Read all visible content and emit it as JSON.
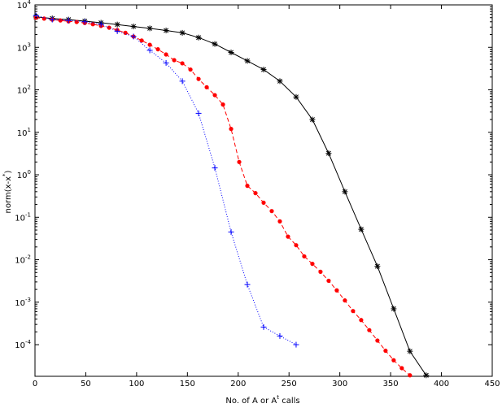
{
  "chart_data": {
    "type": "line",
    "title": "",
    "xlabel": "No. of A or A",
    "xlabel_sup": "t",
    "xlabel_suffix": " calls",
    "ylabel": "norm(x-x",
    "ylabel_sup": "*",
    "ylabel_suffix": ")",
    "xlim": [
      0,
      450
    ],
    "ylim": [
      1.8e-05,
      10000
    ],
    "yscale": "log",
    "grid": false,
    "xticks": [
      0,
      50,
      100,
      150,
      200,
      250,
      300,
      350,
      400,
      450
    ],
    "xtick_labels": [
      "0",
      "50",
      "100",
      "150",
      "200",
      "250",
      "300",
      "350",
      "400",
      "450"
    ],
    "yticks": [
      0.0001,
      0.001,
      0.01,
      0.1,
      1,
      10,
      100,
      1000,
      10000
    ],
    "ytick_mantissas": [
      "10",
      "10",
      "10",
      "10",
      "10",
      "10",
      "10",
      "10",
      "10"
    ],
    "ytick_exponents": [
      "-4",
      "-3",
      "-2",
      "-1",
      "0",
      "1",
      "2",
      "3",
      "4"
    ],
    "series": [
      {
        "color": "#000000",
        "style": "solid",
        "marker": "star",
        "x": [
          1,
          17,
          33,
          49,
          65,
          81,
          97,
          113,
          129,
          145,
          161,
          177,
          193,
          209,
          225,
          241,
          257,
          273,
          289,
          305,
          321,
          337,
          353,
          369,
          385,
          401,
          417
        ],
        "y": [
          5200,
          4800,
          4500,
          4150,
          3800,
          3450,
          3100,
          2800,
          2500,
          2200,
          1700,
          1200,
          760,
          480,
          300,
          160,
          68,
          20,
          3.2,
          0.4,
          0.052,
          0.007,
          0.0007,
          7e-05,
          1.9e-05,
          null,
          null
        ]
      },
      {
        "color": "#ff0000",
        "style": "dashed",
        "marker": "dot",
        "x": [
          1,
          9,
          17,
          25,
          33,
          41,
          49,
          57,
          65,
          73,
          81,
          89,
          97,
          105,
          113,
          121,
          129,
          137,
          145,
          153,
          161,
          169,
          177,
          185,
          193,
          201,
          209,
          217,
          225,
          233,
          241,
          249,
          257,
          265,
          273,
          281,
          289,
          297,
          305,
          313,
          321,
          329,
          337,
          345,
          353,
          361,
          369,
          377,
          385
        ],
        "y": [
          5000,
          4750,
          4500,
          4300,
          4100,
          3950,
          3750,
          3500,
          3200,
          2900,
          2550,
          2200,
          1800,
          1450,
          1150,
          900,
          680,
          500,
          420,
          300,
          180,
          115,
          75,
          45,
          12,
          2,
          0.55,
          0.37,
          0.22,
          0.14,
          0.08,
          0.035,
          0.022,
          0.012,
          0.008,
          0.0052,
          0.0032,
          0.0019,
          0.0011,
          0.00062,
          0.00038,
          0.00022,
          0.000125,
          7.2e-05,
          4.3e-05,
          2.8e-05,
          1.9e-05,
          null,
          null
        ]
      },
      {
        "color": "#0000ff",
        "style": "dotted",
        "marker": "plus",
        "x": [
          1,
          17,
          33,
          49,
          65,
          81,
          97,
          113,
          129,
          145,
          161,
          177,
          193,
          209,
          225,
          241,
          257
        ],
        "y": [
          5600,
          4500,
          4300,
          4000,
          3500,
          2400,
          1800,
          850,
          430,
          160,
          28,
          1.45,
          0.045,
          0.0026,
          0.00026,
          0.00016,
          0.0001
        ]
      }
    ]
  }
}
